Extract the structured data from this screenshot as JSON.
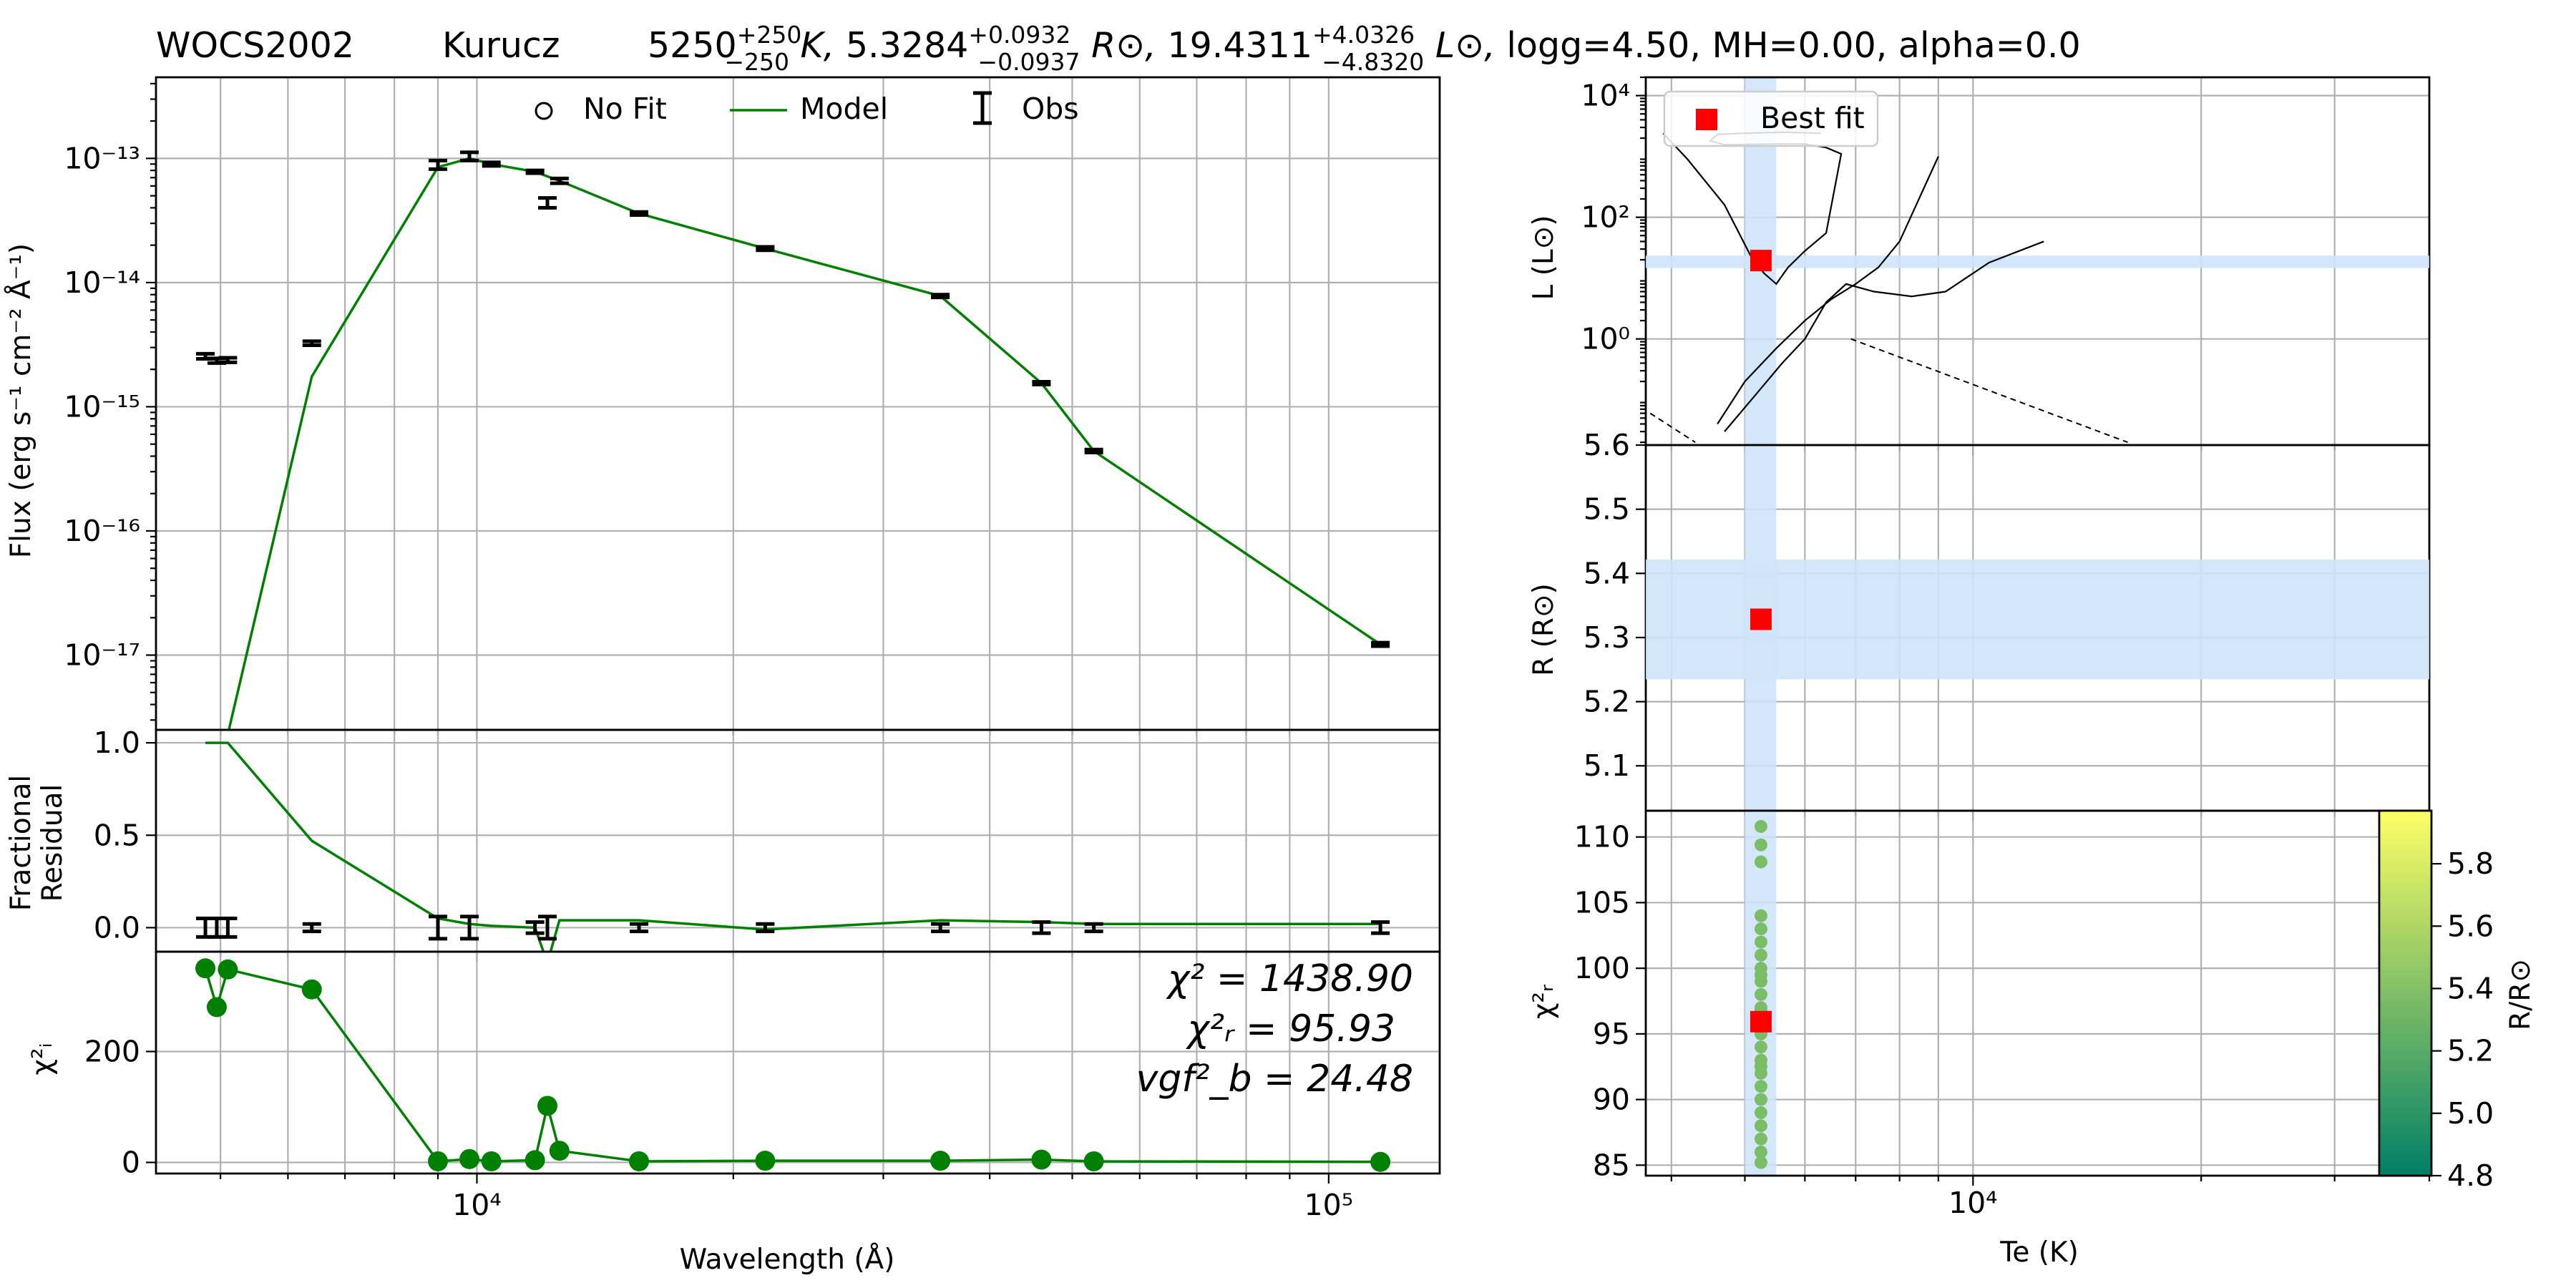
{
  "header": {
    "star": "WOCS2002",
    "model": "Kurucz",
    "params": {
      "teff": "5250",
      "teff_up": "+250",
      "teff_dn": "−250",
      "teff_unit": " K, ",
      "r": "5.3284",
      "r_up": "+0.0932",
      "r_dn": "−0.0937",
      "r_unit": " R⊙, ",
      "l": "19.4311",
      "l_up": "+4.0326",
      "l_dn": "−4.8320",
      "l_unit": " L⊙, ",
      "rest": "logg=4.50, MH=0.00, alpha=0.0"
    }
  },
  "labels": {
    "flux_y": "Flux (erg s⁻¹ cm⁻² Å⁻¹)",
    "resid_y1": "Fractional",
    "resid_y2": "Residual",
    "chi_y": "χ²ᵢ",
    "wave_x": "Wavelength (Å)",
    "lum_y": "L (L⊙)",
    "rad_y": "R (R⊙)",
    "chir_y": "χ²ᵣ",
    "te_x": "Te (K)",
    "cbar": "R/R⊙"
  },
  "legend_sed": {
    "nofit": "No Fit",
    "model": "Model",
    "obs": "Obs"
  },
  "legend_hr": {
    "best": "Best fit"
  },
  "stats": {
    "chi2": "χ² = 1438.90",
    "chi2r": "χ²ᵣ = 95.93",
    "vgf": "vgf²_b = 24.48"
  },
  "colors": {
    "model": "#008000",
    "best": "#ff0000",
    "band": "#cfe4fa",
    "obs": "#000000"
  },
  "chart_data": [
    {
      "type": "line",
      "panel": "SED",
      "xlabel": "Wavelength (Å)",
      "ylabel": "Flux (erg s⁻¹ cm⁻² Å⁻¹)",
      "xscale": "log",
      "yscale": "log",
      "xlim": [
        4200,
        135000
      ],
      "ylim": [
        2.5e-18,
        4.5e-13
      ],
      "xticks": [
        10000,
        100000
      ],
      "xtick_labels": [
        "10⁴",
        "10⁵"
      ],
      "yticks": [
        1e-17,
        1e-16,
        1e-15,
        1e-14,
        1e-13
      ],
      "ytick_labels": [
        "10⁻¹⁷",
        "10⁻¹⁶",
        "10⁻¹⁵",
        "10⁻¹⁴",
        "10⁻¹³"
      ],
      "grid": true,
      "legend": "top-center",
      "obs": [
        {
          "x": 4800,
          "y": 2.55e-15,
          "err": 1.2e-16
        },
        {
          "x": 4950,
          "y": 2.35e-15,
          "err": 1e-16
        },
        {
          "x": 5100,
          "y": 2.38e-15,
          "err": 1e-16
        },
        {
          "x": 6400,
          "y": 3.25e-15,
          "err": 1.2e-16
        },
        {
          "x": 9000,
          "y": 8.9e-14,
          "err": 7e-15
        },
        {
          "x": 9800,
          "y": 1.04e-13,
          "err": 8e-15
        },
        {
          "x": 10400,
          "y": 9e-14,
          "err": 3e-15
        },
        {
          "x": 11700,
          "y": 7.8e-14,
          "err": 2e-15
        },
        {
          "x": 12100,
          "y": 4.4e-14,
          "err": 4e-15
        },
        {
          "x": 12500,
          "y": 6.6e-14,
          "err": 3e-15
        },
        {
          "x": 15500,
          "y": 3.6e-14,
          "err": 1e-15
        },
        {
          "x": 21800,
          "y": 1.88e-14,
          "err": 6e-16
        },
        {
          "x": 35000,
          "y": 7.8e-15,
          "err": 2e-16
        },
        {
          "x": 46000,
          "y": 1.55e-15,
          "err": 4e-17
        },
        {
          "x": 53000,
          "y": 4.4e-16,
          "err": 1.2e-17
        },
        {
          "x": 115000,
          "y": 1.22e-17,
          "err": 4e-19
        }
      ],
      "series": [
        {
          "name": "Model",
          "x": [
            4950,
            5100,
            6400,
            9000,
            9800,
            10400,
            11700,
            12500,
            15500,
            21800,
            35000,
            46000,
            53000,
            115000
          ],
          "y": [
            4e-19,
            2.3e-18,
            1.75e-15,
            8.5e-14,
            1e-13,
            9e-14,
            7.8e-14,
            6.6e-14,
            3.6e-14,
            1.88e-14,
            7.8e-15,
            1.55e-15,
            4.4e-16,
            1.22e-17
          ]
        }
      ]
    },
    {
      "type": "line",
      "panel": "Fractional Residual",
      "ylim": [
        -0.13,
        1.07
      ],
      "yticks": [
        0.0,
        0.5,
        1.0
      ],
      "ytick_labels": [
        "0.0",
        "0.5",
        "1.0"
      ],
      "obs": [
        {
          "x": 4800,
          "y": 0.0,
          "err": 0.05
        },
        {
          "x": 4950,
          "y": 0.0,
          "err": 0.05
        },
        {
          "x": 5100,
          "y": 0.0,
          "err": 0.05
        },
        {
          "x": 6400,
          "y": 0.0,
          "err": 0.02
        },
        {
          "x": 9000,
          "y": 0.0,
          "err": 0.06
        },
        {
          "x": 9800,
          "y": 0.0,
          "err": 0.06
        },
        {
          "x": 11700,
          "y": 0.0,
          "err": 0.03
        },
        {
          "x": 12100,
          "y": 0.0,
          "err": 0.06
        },
        {
          "x": 15500,
          "y": 0.0,
          "err": 0.02
        },
        {
          "x": 21800,
          "y": 0.0,
          "err": 0.02
        },
        {
          "x": 35000,
          "y": 0.0,
          "err": 0.02
        },
        {
          "x": 46000,
          "y": 0.0,
          "err": 0.03
        },
        {
          "x": 53000,
          "y": 0.0,
          "err": 0.02
        },
        {
          "x": 115000,
          "y": 0.0,
          "err": 0.03
        }
      ],
      "series": [
        {
          "name": "Model",
          "x": [
            4800,
            5100,
            6400,
            9000,
            9800,
            10400,
            11700,
            12100,
            12500,
            15500,
            21800,
            35000,
            46000,
            53000,
            115000
          ],
          "y": [
            1.0,
            1.0,
            0.47,
            0.05,
            0.02,
            0.01,
            0.0,
            -0.19,
            0.04,
            0.04,
            -0.01,
            0.04,
            0.03,
            0.02,
            0.02
          ]
        }
      ]
    },
    {
      "type": "scatter",
      "panel": "chi2_i",
      "ylim": [
        -20,
        380
      ],
      "yticks": [
        0,
        200
      ],
      "ytick_labels": [
        "0",
        "200"
      ],
      "series": [
        {
          "x": [
            4800,
            4950,
            5100,
            6400,
            9000,
            9800,
            10400,
            11700,
            12100,
            12500,
            15500,
            21800,
            35000,
            46000,
            53000,
            115000
          ],
          "y": [
            350,
            280,
            348,
            312,
            2,
            6,
            2,
            4,
            102,
            21,
            2,
            3,
            3,
            5,
            2,
            1
          ]
        }
      ]
    },
    {
      "type": "line",
      "panel": "HR diagram",
      "ylabel": "L (L⊙)",
      "xscale": "log",
      "yscale": "log",
      "xlim": [
        3700,
        40000
      ],
      "ylim": [
        0.018,
        20000
      ],
      "yticks": [
        1,
        100,
        10000
      ],
      "ytick_labels": [
        "10⁰",
        "10²",
        "10⁴"
      ],
      "legend": "top-left",
      "best_fit": {
        "x": 5250,
        "y": 19.43
      },
      "band_x": [
        5000,
        5500
      ],
      "band_y": [
        14.6,
        23.5
      ],
      "series": [
        {
          "x": [
            3900,
            4200,
            4700,
            5100,
            5300,
            5500,
            5700,
            6000,
            6400,
            6700,
            6400,
            6000,
            5400,
            4700,
            4500,
            4600,
            5000,
            5600,
            6300
          ],
          "y": [
            2400,
            900,
            160,
            22,
            12,
            8,
            15,
            28,
            55,
            1100,
            1400,
            1600,
            1600,
            1550,
            1800,
            2300,
            2400,
            2500,
            2400
          ]
        },
        {
          "x": [
            4700,
            5100,
            5600,
            6000,
            6400,
            6800,
            7400,
            8300,
            9200,
            10500,
            12400
          ],
          "y": [
            0.03,
            0.1,
            0.4,
            1.0,
            4.0,
            8,
            6,
            5,
            6,
            18,
            40
          ]
        },
        {
          "x": [
            4600,
            5000,
            5500,
            6000,
            6500,
            7000,
            7500,
            8000,
            9000
          ],
          "y": [
            0.04,
            0.2,
            0.7,
            2.0,
            4.5,
            8,
            15,
            40,
            1000
          ]
        }
      ]
    },
    {
      "type": "scatter",
      "panel": "Radius",
      "ylabel": "R (R⊙)",
      "ylim": [
        5.03,
        5.6
      ],
      "yticks": [
        5.1,
        5.2,
        5.3,
        5.4,
        5.5,
        5.6
      ],
      "ytick_labels": [
        "5.1",
        "5.2",
        "5.3",
        "5.4",
        "5.5",
        "5.6"
      ],
      "best_fit": {
        "x": 5250,
        "y": 5.3284
      },
      "band_y": [
        5.2347,
        5.4216
      ]
    },
    {
      "type": "scatter",
      "panel": "chi2_r",
      "xlabel": "Te (K)",
      "ylabel": "χ²ᵣ",
      "ylim": [
        84.2,
        112
      ],
      "yticks": [
        85,
        90,
        95,
        100,
        105,
        110
      ],
      "ytick_labels": [
        "85",
        "90",
        "95",
        "100",
        "105",
        "110"
      ],
      "xticks": [
        10000
      ],
      "xtick_labels": [
        "10⁴"
      ],
      "best_fit": {
        "x": 5250,
        "y": 95.93
      },
      "colorbar": {
        "label": "R/R⊙",
        "min": 4.8,
        "max": 5.9,
        "ticks": [
          4.8,
          5.0,
          5.2,
          5.4,
          5.6,
          5.8
        ],
        "tick_labels": [
          "4.8",
          "5.0",
          "5.2",
          "5.4",
          "5.6",
          "5.8"
        ]
      },
      "series": [
        {
          "x": [
            5250,
            5250,
            5250,
            5250,
            5250,
            5250,
            5250,
            5250,
            5250,
            5250,
            5250,
            5250,
            5250,
            5250,
            5250,
            5250,
            5250,
            5250,
            5250,
            5250,
            5250,
            5250,
            5250,
            5250,
            5250,
            5250
          ],
          "y": [
            110.8,
            109.4,
            108.1,
            104.0,
            103.0,
            102.0,
            101.0,
            100.0,
            99.0,
            98.0,
            97.0,
            96.8,
            96.2,
            95.0,
            94.0,
            93.0,
            92.0,
            91.0,
            90.0,
            89.0,
            88.0,
            87.0,
            86.0,
            85.2,
            99.5,
            92.5
          ],
          "c": [
            5.33,
            5.33,
            5.33,
            5.33,
            5.33,
            5.33,
            5.33,
            5.33,
            5.33,
            5.33,
            5.33,
            5.33,
            5.33,
            5.33,
            5.33,
            5.33,
            5.33,
            5.33,
            5.33,
            5.33,
            5.33,
            5.33,
            5.33,
            5.33,
            5.33,
            5.33
          ]
        }
      ]
    }
  ]
}
